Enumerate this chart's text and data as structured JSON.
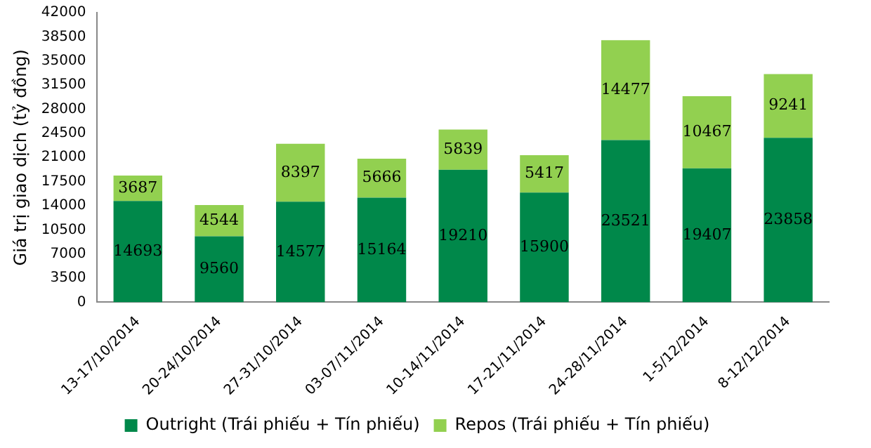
{
  "chart_data": {
    "type": "bar",
    "stacked": true,
    "ylabel": "Giá trị giao dịch (tỷ đồng)",
    "categories": [
      "13-17/10/2014",
      "20-24/10/2014",
      "27-31/10/2014",
      "03-07/11/2014",
      "10-14/11/2014",
      "17-21/11/2014",
      "24-28/11/2014",
      "1-5/12/2014",
      "8-12/12/2014"
    ],
    "series": [
      {
        "name": "Outright (Trái phiếu + Tín phiếu)",
        "color": "#00884a",
        "values": [
          14693,
          9560,
          14577,
          15164,
          19210,
          15900,
          23521,
          19407,
          23858
        ]
      },
      {
        "name": "Repos (Trái phiếu + Tín phiếu)",
        "color": "#92d050",
        "values": [
          3687,
          4544,
          8397,
          5666,
          5839,
          5417,
          14477,
          10467,
          9241
        ]
      }
    ],
    "ylim": [
      0,
      42000
    ],
    "yticks": [
      0,
      3500,
      7000,
      10500,
      14000,
      17500,
      21000,
      24500,
      28000,
      31500,
      35000,
      38500,
      42000
    ],
    "grid": false,
    "legend": "bottom",
    "data_labels": true
  }
}
